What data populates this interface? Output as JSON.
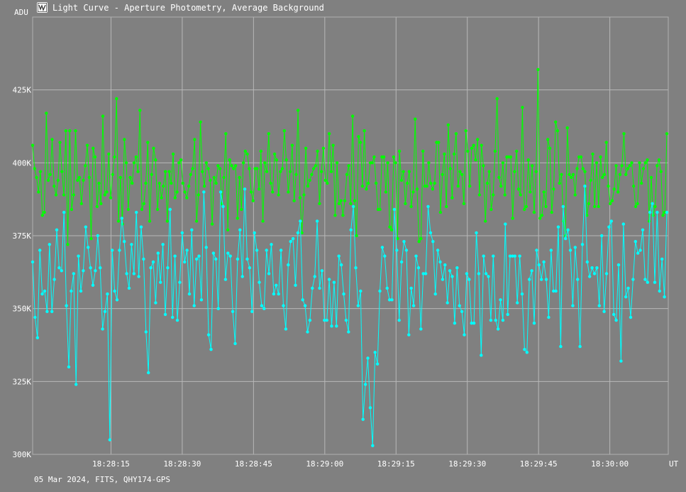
{
  "window": {
    "title": "Light Curve - Aperture Photometry, Average Background",
    "icon": "light-curve-app-icon"
  },
  "chart_data": {
    "type": "line",
    "title": "Light Curve - Aperture Photometry, Average Background",
    "ylabel": "ADU",
    "xlabel": "UT",
    "footer": "05 Mar 2024, FITS, QHY174-GPS",
    "ylim": [
      300000,
      450000
    ],
    "yticks": [
      300000,
      325000,
      350000,
      375000,
      400000,
      425000
    ],
    "ytick_labels": [
      "300K",
      "325K",
      "350K",
      "375K",
      "400K",
      "425K"
    ],
    "xlim_seconds": [
      0,
      88.2
    ],
    "xticks_seconds": [
      10,
      20,
      30,
      40,
      50,
      60,
      70,
      80
    ],
    "xtick_labels": [
      "18:28:15",
      "18:28:30",
      "18:28:45",
      "18:29:00",
      "18:29:15",
      "18:29:30",
      "18:29:45",
      "18:30:00"
    ],
    "x_start": "18:28:05",
    "x_step_seconds": 0.25,
    "grid": true,
    "series": [
      {
        "color": "#00ff00",
        "values": [
          406000,
          398000,
          395000,
          390000,
          397000,
          382000,
          383000,
          417000,
          394000,
          396000,
          408000,
          392000,
          389000,
          394000,
          407000,
          397000,
          389000,
          411000,
          372000,
          411000,
          384000,
          389000,
          411000,
          394000,
          395000,
          386000,
          394000,
          399000,
          406000,
          395000,
          374000,
          405000,
          402000,
          385000,
          393000,
          386000,
          416000,
          389000,
          390000,
          403000,
          388000,
          396000,
          402000,
          422000,
          380000,
          395000,
          379000,
          408000,
          400000,
          384000,
          395000,
          393000,
          400000,
          402000,
          397000,
          418000,
          384000,
          386000,
          393000,
          407000,
          380000,
          396000,
          405000,
          401000,
          384000,
          393000,
          388000,
          392000,
          397000,
          380000,
          397000,
          393000,
          403000,
          388000,
          390000,
          400000,
          401000,
          393000,
          390000,
          388000,
          392000,
          396000,
          398000,
          408000,
          380000,
          389000,
          414000,
          397000,
          392000,
          400000,
          398000,
          394000,
          379000,
          395000,
          393000,
          399000,
          398000,
          386000,
          395000,
          410000,
          377000,
          401000,
          399000,
          398000,
          399000,
          381000,
          395000,
          384000,
          400000,
          404000,
          403000,
          398000,
          390000,
          387000,
          398000,
          398000,
          391000,
          404000,
          380000,
          400000,
          397000,
          410000,
          393000,
          390000,
          403000,
          401000,
          389000,
          397000,
          398000,
          411000,
          401000,
          390000,
          397000,
          406000,
          387000,
          396000,
          418000,
          388000,
          376000,
          389000,
          405000,
          392000,
          394000,
          396000,
          398000,
          399000,
          404000,
          386000,
          397000,
          405000,
          394000,
          393000,
          410000,
          397000,
          406000,
          382000,
          400000,
          386000,
          387000,
          382000,
          387000,
          396000,
          399000,
          386000,
          416000,
          387000,
          375000,
          409000,
          407000,
          392000,
          411000,
          391000,
          393000,
          400000,
          400000,
          402000,
          393000,
          384000,
          384000,
          402000,
          402000,
          390000,
          400000,
          378000,
          377000,
          402000,
          400000,
          374000,
          404000,
          394000,
          397000,
          386000,
          393000,
          397000,
          385000,
          390000,
          415000,
          391000,
          373000,
          374000,
          404000,
          392000,
          392000,
          400000,
          393000,
          391000,
          393000,
          407000,
          407000,
          383000,
          396000,
          403000,
          385000,
          413000,
          398000,
          388000,
          403000,
          410000,
          392000,
          397000,
          396000,
          386000,
          411000,
          404000,
          392000,
          405000,
          406000,
          401000,
          408000,
          389000,
          406000,
          399000,
          380000,
          393000,
          397000,
          384000,
          389000,
          404000,
          422000,
          395000,
          392000,
          400000,
          389000,
          402000,
          402000,
          402000,
          381000,
          397000,
          404000,
          391000,
          389000,
          419000,
          384000,
          385000,
          401000,
          390000,
          399000,
          383000,
          397000,
          432000,
          381000,
          382000,
          390000,
          385000,
          408000,
          405000,
          383000,
          391000,
          414000,
          411000,
          393000,
          396000,
          380000,
          375000,
          412000,
          396000,
          395000,
          396000,
          389000,
          398000,
          402000,
          402000,
          398000,
          397000,
          382000,
          386000,
          394000,
          403000,
          385000,
          400000,
          385000,
          402000,
          395000,
          396000,
          407000,
          392000,
          386000,
          387000,
          391000,
          399000,
          390000,
          396000,
          399000,
          410000,
          396000,
          398000,
          399000,
          400000,
          392000,
          385000,
          386000,
          400000,
          393000,
          398000,
          400000,
          401000,
          380000,
          395000,
          382000,
          385000,
          399000,
          401000,
          397000,
          382000,
          383000,
          410000
        ]
      },
      {
        "color": "#00ffff",
        "values": [
          366000,
          347000,
          340000,
          370000,
          355000,
          356000,
          349000,
          372000,
          349000,
          360000,
          377000,
          364000,
          363000,
          383000,
          351000,
          330000,
          356000,
          362000,
          324000,
          368000,
          356000,
          363000,
          378000,
          371000,
          364000,
          358000,
          363000,
          375000,
          364000,
          343000,
          349000,
          355000,
          305000,
          370000,
          356000,
          353000,
          370000,
          381000,
          373000,
          362000,
          357000,
          372000,
          362000,
          383000,
          361000,
          378000,
          367000,
          342000,
          328000,
          364000,
          366000,
          352000,
          369000,
          359000,
          372000,
          348000,
          364000,
          384000,
          347000,
          368000,
          346000,
          359000,
          376000,
          366000,
          370000,
          355000,
          377000,
          351000,
          367000,
          368000,
          353000,
          390000,
          371000,
          341000,
          336000,
          369000,
          367000,
          350000,
          390000,
          385000,
          360000,
          369000,
          368000,
          349000,
          338000,
          367000,
          377000,
          361000,
          391000,
          367000,
          364000,
          349000,
          376000,
          370000,
          359000,
          351000,
          350000,
          370000,
          362000,
          372000,
          355000,
          358000,
          355000,
          370000,
          351000,
          343000,
          365000,
          373000,
          374000,
          358000,
          376000,
          380000,
          353000,
          351000,
          342000,
          346000,
          357000,
          361000,
          380000,
          357000,
          363000,
          346000,
          346000,
          360000,
          344000,
          359000,
          344000,
          368000,
          365000,
          355000,
          346000,
          342000,
          377000,
          385000,
          364000,
          351000,
          356000,
          312000,
          324000,
          333000,
          316000,
          303000,
          335000,
          331000,
          356000,
          371000,
          368000,
          357000,
          353000,
          353000,
          384000,
          370000,
          346000,
          366000,
          373000,
          370000,
          341000,
          357000,
          351000,
          368000,
          364000,
          343000,
          362000,
          362000,
          385000,
          376000,
          373000,
          355000,
          370000,
          366000,
          360000,
          365000,
          352000,
          363000,
          361000,
          345000,
          364000,
          351000,
          349000,
          341000,
          362000,
          360000,
          345000,
          345000,
          376000,
          362000,
          334000,
          368000,
          362000,
          361000,
          346000,
          368000,
          346000,
          343000,
          353000,
          346000,
          379000,
          348000,
          368000,
          368000,
          368000,
          352000,
          368000,
          355000,
          336000,
          335000,
          360000,
          363000,
          345000,
          370000,
          365000,
          360000,
          366000,
          360000,
          347000,
          370000,
          356000,
          356000,
          378000,
          337000,
          385000,
          374000,
          377000,
          370000,
          351000,
          371000,
          360000,
          337000,
          372000,
          392000,
          366000,
          361000,
          364000,
          362000,
          364000,
          351000,
          375000,
          349000,
          362000,
          378000,
          380000,
          348000,
          346000,
          365000,
          332000,
          379000,
          354000,
          357000,
          347000,
          360000,
          373000,
          369000,
          370000,
          377000,
          360000,
          359000,
          383000,
          386000,
          359000,
          383000,
          356000,
          367000,
          354000,
          383000
        ]
      }
    ]
  }
}
